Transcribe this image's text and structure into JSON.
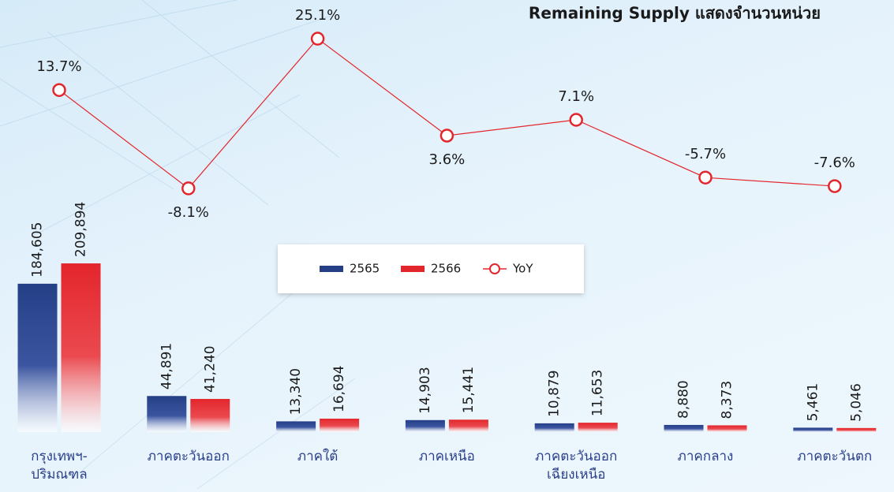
{
  "chart_data": {
    "type": "bar",
    "title": "Remaining Supply แสดงจำนวนหน่วย",
    "categories": [
      "กรุงเทพฯ-\nปริมณฑล",
      "ภาคตะวันออก",
      "ภาคใต้",
      "ภาคเหนือ",
      "ภาคตะวันออก\nเฉียงเหนือ",
      "ภาคกลาง",
      "ภาคตะวันตก"
    ],
    "series": [
      {
        "name": "2565",
        "color": "#253f87",
        "values": [
          184605,
          44891,
          13340,
          14903,
          10879,
          8880,
          5461
        ],
        "value_labels": [
          "184,605",
          "44,891",
          "13,340",
          "14,903",
          "10,879",
          "8,880",
          "5,461"
        ]
      },
      {
        "name": "2566",
        "color": "#e3262c",
        "values": [
          209894,
          41240,
          16694,
          15441,
          11653,
          8373,
          5046
        ],
        "value_labels": [
          "209,894",
          "41,240",
          "16,694",
          "15,441",
          "11,653",
          "8,373",
          "5,046"
        ]
      },
      {
        "name": "YoY",
        "type": "line",
        "axis": "y2",
        "color": "#e3262c",
        "values": [
          13.7,
          -8.1,
          25.1,
          3.6,
          7.1,
          -5.7,
          -7.6
        ],
        "value_labels": [
          "13.7%",
          "-8.1%",
          "25.1%",
          "3.6%",
          "7.1%",
          "-5.7%",
          "-7.6%"
        ]
      }
    ],
    "ylim": [
      0,
      520000
    ],
    "y2lim": [
      -20,
      30
    ],
    "legend": "center"
  }
}
